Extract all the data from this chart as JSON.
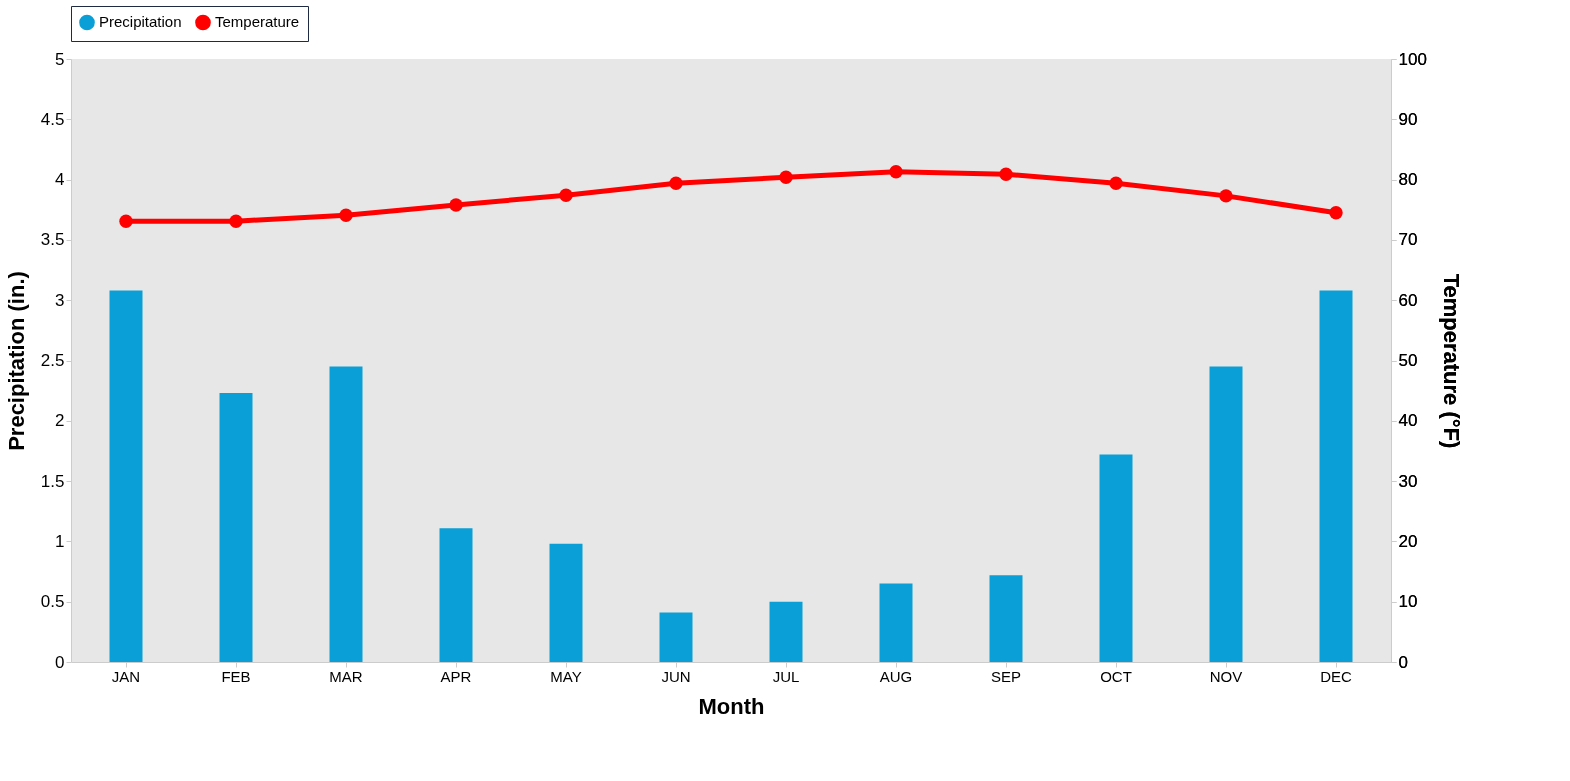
{
  "chart_data": {
    "type": "bar",
    "xlabel": "Month",
    "ylabel": "Precipitation (in.)",
    "y2label": "Temperature (°F)",
    "categories": [
      "JAN",
      "FEB",
      "MAR",
      "APR",
      "MAY",
      "JUN",
      "JUL",
      "AUG",
      "SEP",
      "OCT",
      "NOV",
      "DEC"
    ],
    "series": [
      {
        "name": "Precipitation",
        "color": "#0a9fd6",
        "values": [
          3.08,
          2.23,
          2.45,
          1.11,
          0.98,
          0.41,
          0.5,
          0.65,
          0.72,
          1.72,
          2.45,
          3.08
        ]
      },
      {
        "name": "Temperature",
        "type": "line",
        "axis": "y2",
        "color": "#ff0000",
        "values": [
          73.1,
          73.1,
          74.1,
          75.8,
          77.4,
          79.4,
          80.4,
          81.3,
          80.9,
          79.4,
          77.3,
          74.5
        ]
      }
    ],
    "ylim": [
      0,
      5
    ],
    "yticks": [
      0,
      0.5,
      1,
      1.5,
      2,
      2.5,
      3,
      3.5,
      4,
      4.5,
      5
    ],
    "y2lim": [
      0,
      100
    ],
    "y2ticks": [
      0,
      10,
      20,
      30,
      40,
      50,
      60,
      70,
      80,
      90,
      100
    ],
    "legend": "top",
    "grid": false,
    "marker": "circle",
    "line_style": "solid"
  }
}
